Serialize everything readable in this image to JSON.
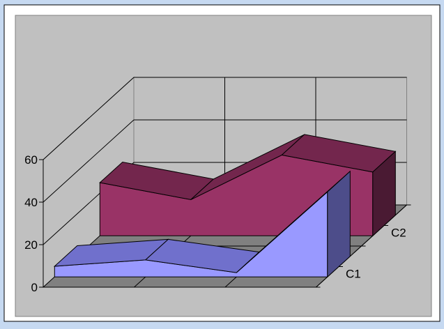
{
  "chart_data": {
    "type": "area",
    "variant": "3d-area",
    "title": "",
    "xlabel": "",
    "ylabel": "",
    "ylim": [
      0,
      60
    ],
    "y_ticks": [
      "0",
      "20",
      "40",
      "60"
    ],
    "grid": true,
    "legend": "none",
    "categories": [
      "",
      "",
      "",
      ""
    ],
    "series": [
      {
        "name": "C1",
        "values": [
          5,
          8,
          2,
          40
        ]
      },
      {
        "name": "C2",
        "values": [
          25,
          17,
          38,
          30
        ]
      }
    ],
    "colors": {
      "C1": {
        "front": "#9999ff",
        "top": "#7070cc",
        "side": "#4d4d8a"
      },
      "C2": {
        "front": "#993366",
        "top": "#73264d",
        "side": "#4a1a33"
      },
      "plot_background": "#c0c0c0",
      "chart_background": "#ffffff",
      "frame": "#c6d9f1"
    }
  }
}
